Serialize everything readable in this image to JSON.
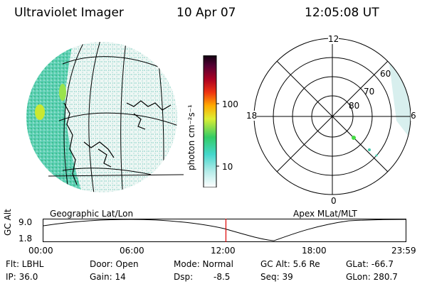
{
  "header": {
    "title": "Ultraviolet Imager",
    "date": "10 Apr 07",
    "time": "12:05:08 UT"
  },
  "colorbar": {
    "unit_label": "photon cm⁻²s⁻¹",
    "ticks": [
      "100",
      "10"
    ]
  },
  "geo_panel": {
    "label": "Geographic Lat/Lon"
  },
  "polar_panel": {
    "label": "Apex MLat/MLT",
    "mlt_labels": [
      "12",
      "18",
      "6",
      "0"
    ],
    "lat_labels": [
      "60",
      "70",
      "80"
    ]
  },
  "altitude_plot": {
    "ylabel": "GC Alt",
    "y_ticks": [
      "9.0",
      "1.8"
    ],
    "x_ticks": [
      "00:00",
      "06:00",
      "12:00",
      "18:00",
      "23:59"
    ],
    "current_time_marker": "12:05",
    "marker_color": "#dd0000"
  },
  "status": {
    "row1": {
      "filter": "Flt: LBHL",
      "door": "Door: Open",
      "mode": "Mode: Normal",
      "gc_alt": "GC Alt: 5.6 Re",
      "glat": "GLat: -66.7"
    },
    "row2": {
      "ip": "IP: 36.0",
      "gain": "Gain: 14",
      "dsp_label": "Dsp:",
      "dsp_value": "-8.5",
      "seq": "Seq: 39",
      "glon": "GLon: 280.7"
    }
  }
}
